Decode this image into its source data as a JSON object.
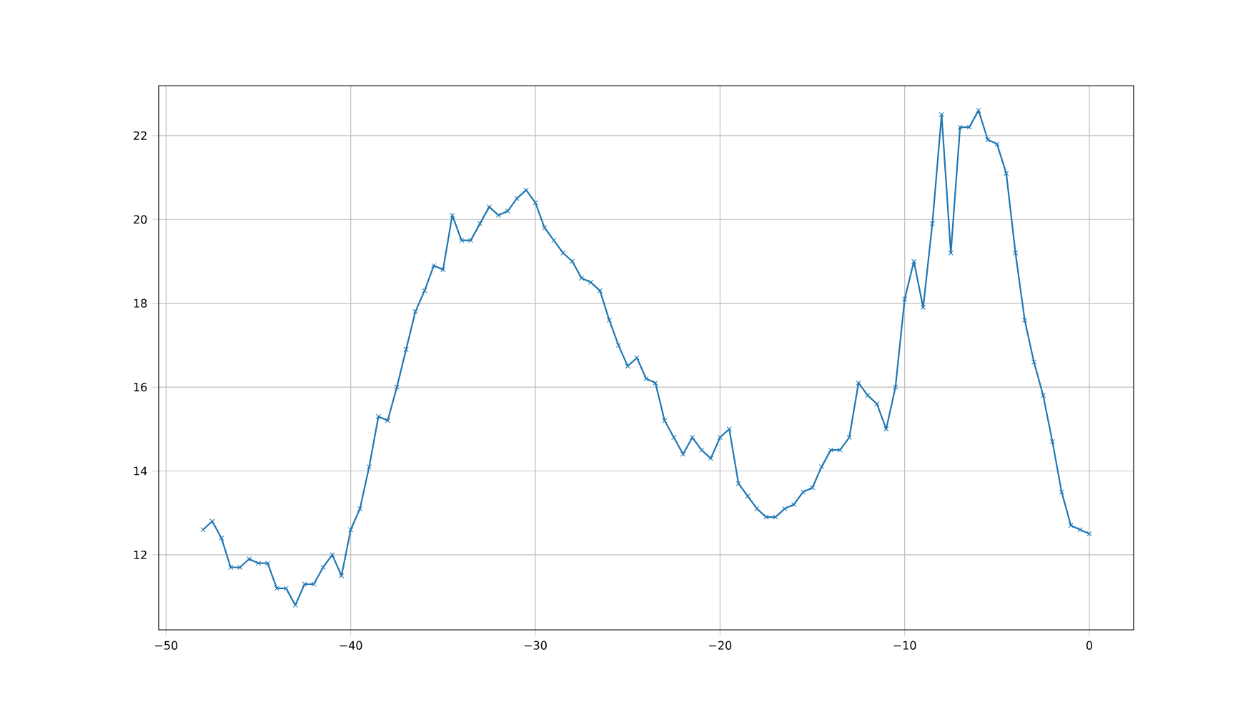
{
  "chart_data": {
    "type": "line",
    "marker": "cross",
    "grid": true,
    "xlim": [
      -50.4,
      2.4
    ],
    "ylim": [
      10.21,
      23.19
    ],
    "xticks": [
      {
        "value": -50,
        "label": "−50"
      },
      {
        "value": -40,
        "label": "−40"
      },
      {
        "value": -30,
        "label": "−30"
      },
      {
        "value": -20,
        "label": "−20"
      },
      {
        "value": -10,
        "label": "−10"
      },
      0
    ],
    "yticks": [
      12,
      14,
      16,
      18,
      20,
      22
    ],
    "x": [
      -48,
      -47.5,
      -47,
      -46.5,
      -46,
      -45.5,
      -45,
      -44.5,
      -44,
      -43.5,
      -43,
      -42.5,
      -42,
      -41.5,
      -41,
      -40.5,
      -40,
      -39.5,
      -39,
      -38.5,
      -38,
      -37.5,
      -37,
      -36.5,
      -36,
      -35.5,
      -35,
      -34.5,
      -34,
      -33.5,
      -33,
      -32.5,
      -32,
      -31.5,
      -31,
      -30.5,
      -30,
      -29.5,
      -29,
      -28.5,
      -28,
      -27.5,
      -27,
      -26.5,
      -26,
      -25.5,
      -25,
      -24.5,
      -24,
      -23.5,
      -23,
      -22.5,
      -22,
      -21.5,
      -21,
      -20.5,
      -20,
      -19.5,
      -19,
      -18.5,
      -18,
      -17.5,
      -17,
      -16.5,
      -16,
      -15.5,
      -15,
      -14.5,
      -14,
      -13.5,
      -13,
      -12.5,
      -12,
      -11.5,
      -11,
      -10.5,
      -10,
      -9.5,
      -9,
      -8.5,
      -8,
      -7.5,
      -7,
      -6.5,
      -6,
      -5.5,
      -5,
      -4.5,
      -4,
      -3.5,
      -3,
      -2.5,
      -2,
      -1.5,
      -1,
      -0.5,
      0
    ],
    "series": [
      {
        "color": "#1f77b4",
        "values": [
          12.6,
          12.8,
          12.4,
          11.7,
          11.7,
          11.9,
          11.8,
          11.8,
          11.2,
          11.2,
          10.8,
          11.3,
          11.3,
          11.7,
          12.0,
          11.5,
          12.6,
          13.1,
          14.1,
          15.3,
          15.2,
          16.0,
          16.9,
          17.8,
          18.3,
          18.9,
          18.8,
          20.1,
          19.5,
          19.5,
          19.9,
          20.3,
          20.1,
          20.2,
          20.5,
          20.7,
          20.4,
          19.8,
          19.5,
          19.2,
          19.0,
          18.6,
          18.5,
          18.3,
          17.6,
          17.0,
          16.5,
          16.7,
          16.2,
          16.1,
          15.2,
          14.8,
          14.4,
          14.8,
          14.5,
          14.3,
          14.8,
          15.0,
          13.7,
          13.4,
          13.1,
          12.9,
          12.9,
          13.1,
          13.2,
          13.5,
          13.6,
          14.1,
          14.5,
          14.5,
          14.8,
          16.1,
          15.8,
          15.6,
          15.0,
          16.0,
          18.1,
          19.0,
          17.9,
          19.9,
          22.5,
          19.2,
          22.2,
          22.2,
          22.6,
          21.9,
          21.8,
          21.1,
          19.2,
          17.6,
          16.6,
          15.8,
          14.7,
          13.5,
          12.7,
          12.6,
          12.5
        ]
      }
    ]
  }
}
